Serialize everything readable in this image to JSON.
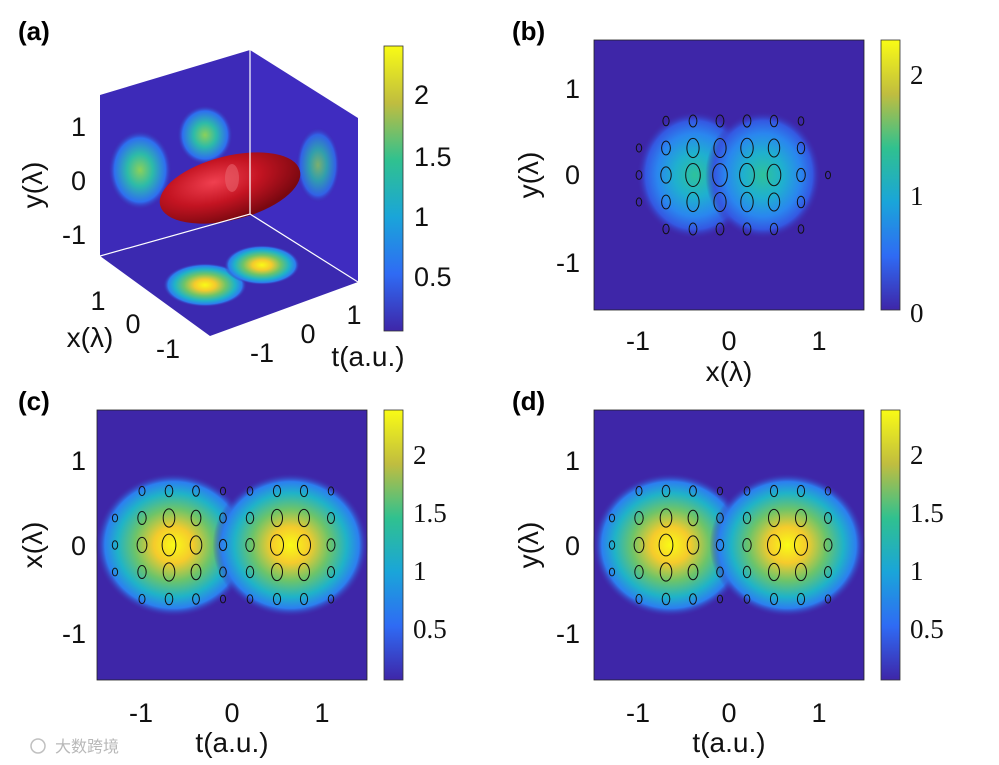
{
  "chart_data": [
    {
      "id": "a",
      "panel_label": "(a)",
      "type": "surface3d",
      "title": "",
      "axes": {
        "y": {
          "label": "y(λ)",
          "ticks": [
            "1",
            "0",
            "-1"
          ]
        },
        "x": {
          "label": "x(λ)",
          "ticks": [
            "1",
            "0",
            "-1"
          ]
        },
        "t": {
          "label": "t(a.u.)",
          "ticks": [
            "-1",
            "0",
            "1"
          ]
        }
      },
      "colorbar": {
        "ticks": [
          "2",
          "1.5",
          "1",
          "0.5"
        ],
        "range": [
          0.1,
          2.35
        ]
      },
      "isosurface_color": "#c41422"
    },
    {
      "id": "b",
      "panel_label": "(b)",
      "type": "heatmap",
      "xlabel": "x(λ)",
      "ylabel": "y(λ)",
      "xlim": [
        -1.5,
        1.5
      ],
      "ylim": [
        -1.5,
        1.5
      ],
      "xticks": [
        "-1",
        "0",
        "1"
      ],
      "yticks": [
        "1",
        "0",
        "-1"
      ],
      "colorbar": {
        "ticks": [
          "2",
          "1",
          "0"
        ],
        "range": [
          0,
          2.35
        ]
      },
      "lobes": [
        [
          -0.38,
          0.0,
          1.2
        ],
        [
          0.38,
          0.0,
          1.2
        ]
      ]
    },
    {
      "id": "c",
      "panel_label": "(c)",
      "type": "heatmap",
      "xlabel": "t(a.u.)",
      "ylabel": "x(λ)",
      "xlim": [
        -1.5,
        1.5
      ],
      "ylim": [
        -1.5,
        1.5
      ],
      "xticks": [
        "-1",
        "0",
        "1"
      ],
      "yticks": [
        "1",
        "0",
        "-1"
      ],
      "colorbar": {
        "ticks": [
          "2",
          "1.5",
          "1",
          "0.5"
        ],
        "range": [
          0.1,
          2.35
        ]
      },
      "lobes": [
        [
          -0.65,
          0.0,
          2.3
        ],
        [
          0.65,
          0.0,
          2.3
        ]
      ]
    },
    {
      "id": "d",
      "panel_label": "(d)",
      "type": "heatmap",
      "xlabel": "t(a.u.)",
      "ylabel": "y(λ)",
      "xlim": [
        -1.5,
        1.5
      ],
      "ylim": [
        -1.5,
        1.5
      ],
      "xticks": [
        "-1",
        "0",
        "1"
      ],
      "yticks": [
        "1",
        "0",
        "-1"
      ],
      "colorbar": {
        "ticks": [
          "2",
          "1.5",
          "1",
          "0.5"
        ],
        "range": [
          0.1,
          2.35
        ]
      },
      "lobes": [
        [
          -0.65,
          0.0,
          2.3
        ],
        [
          0.65,
          0.0,
          2.3
        ]
      ]
    }
  ],
  "watermark": "大数跨境"
}
